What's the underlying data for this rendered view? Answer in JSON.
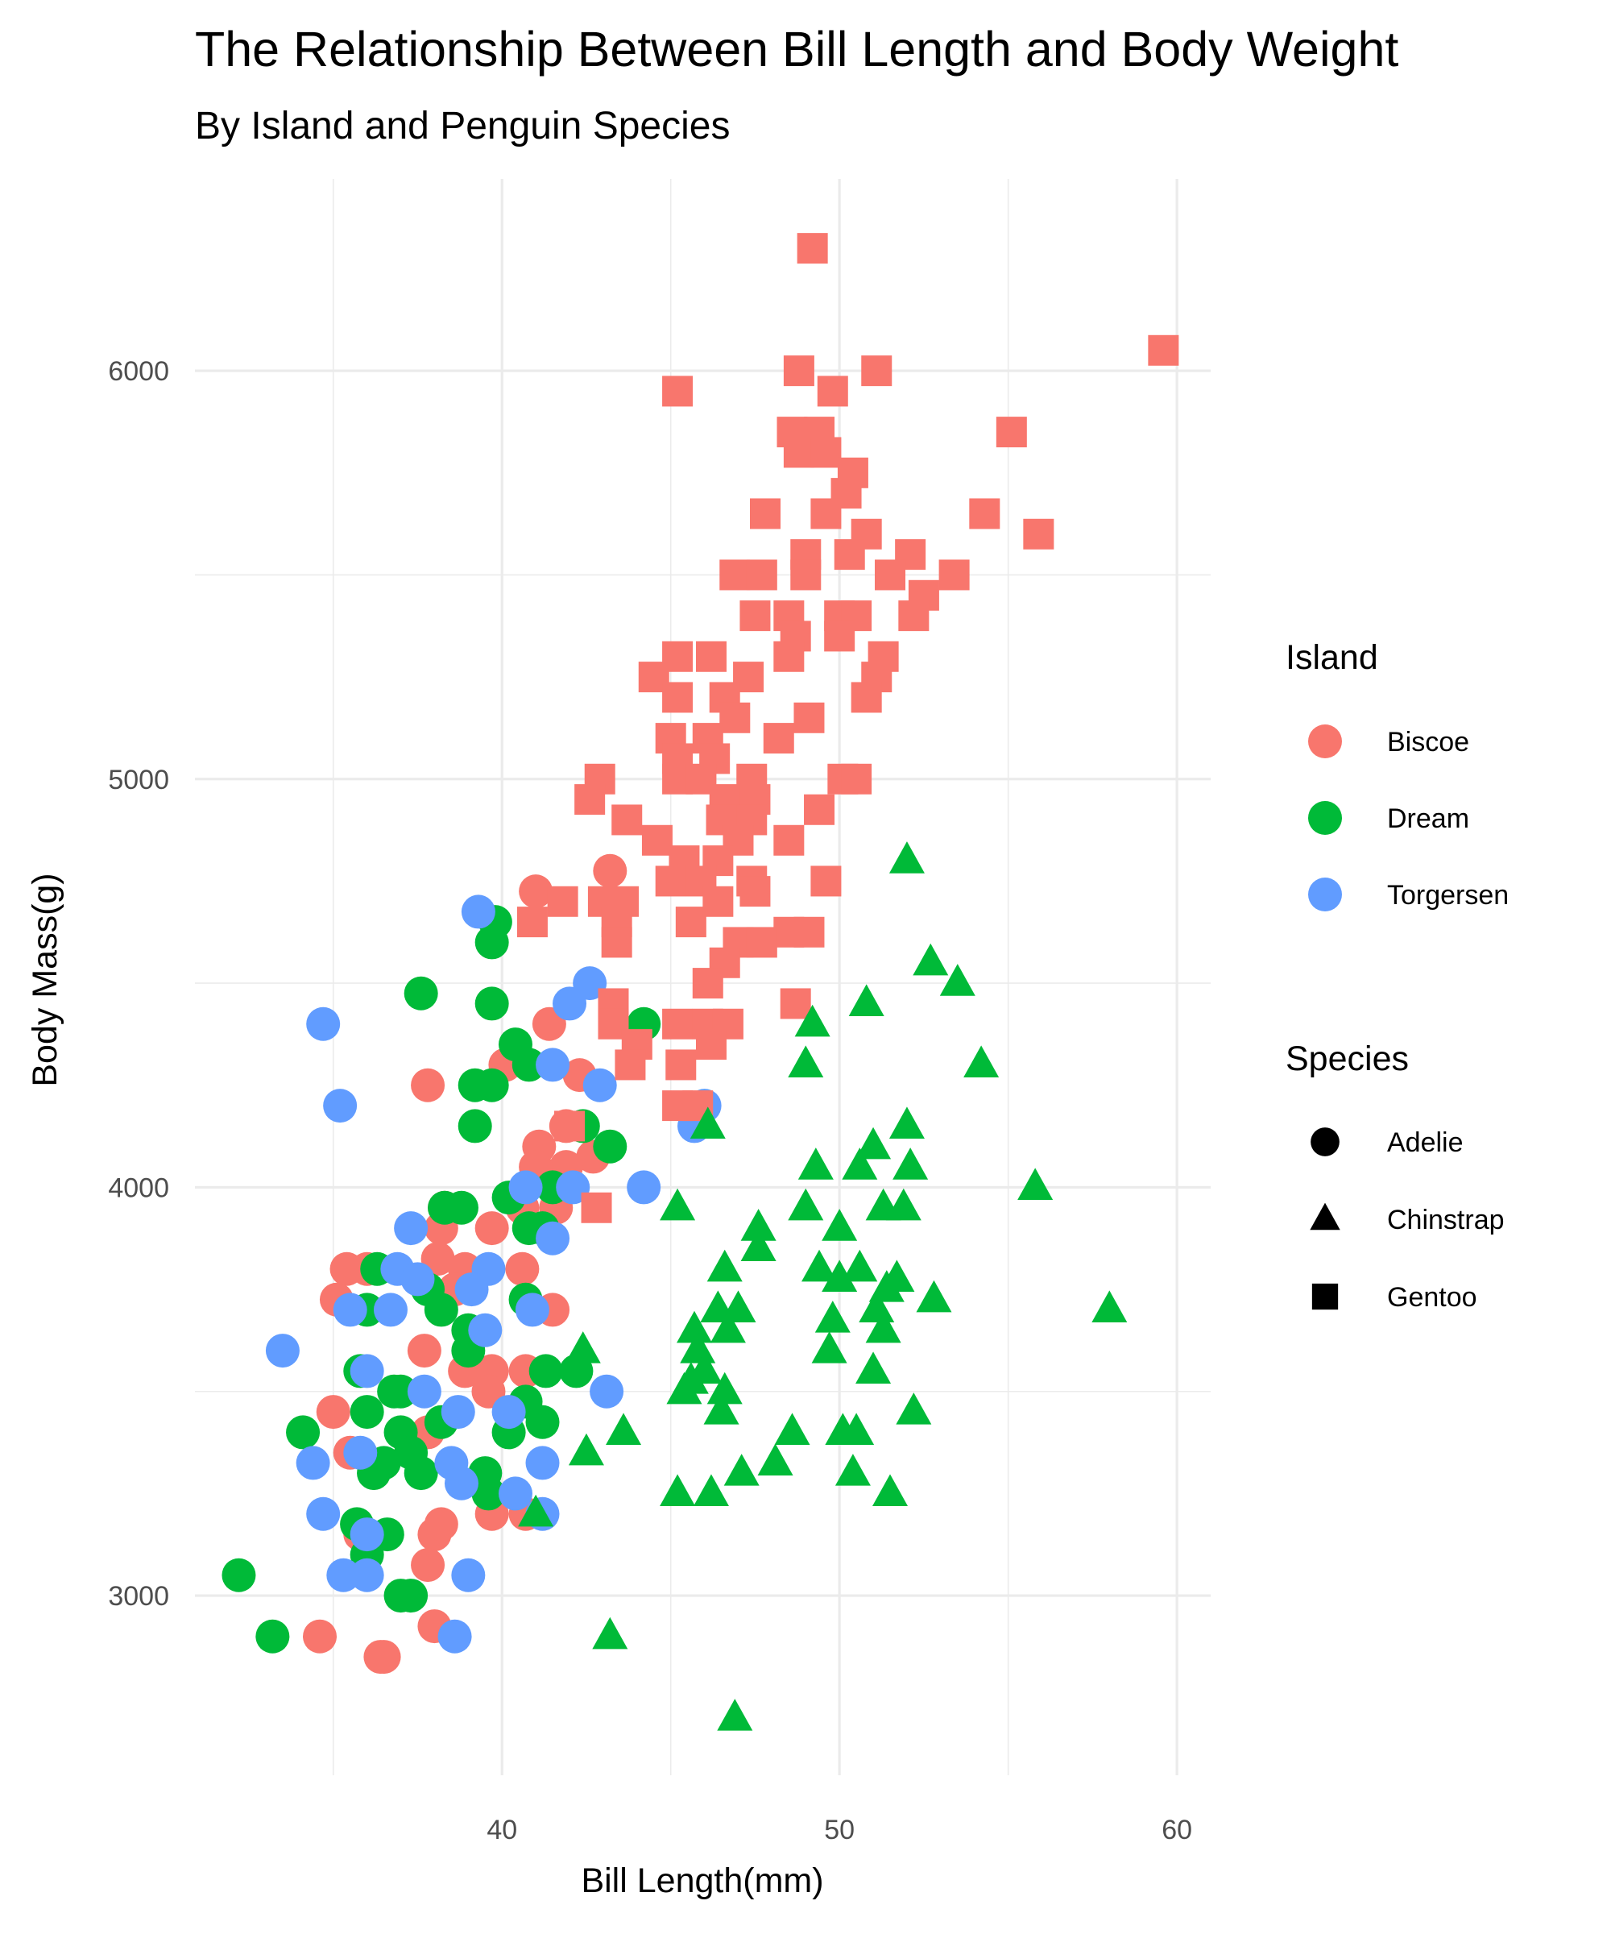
{
  "chart_data": {
    "type": "scatter",
    "title": "The Relationship Between Bill Length and Body Weight",
    "subtitle": "By Island and Penguin Species",
    "xlabel": "Bill Length(mm)",
    "ylabel": "Body Mass(g)",
    "xlim": [
      30.9,
      61
    ],
    "ylim": [
      2560,
      6470
    ],
    "x_ticks": [
      40,
      50,
      60
    ],
    "y_ticks": [
      3000,
      4000,
      5000,
      6000
    ],
    "x_tick_labels": [
      "40",
      "50",
      "60"
    ],
    "y_tick_labels": [
      "3000",
      "4000",
      "5000",
      "6000"
    ],
    "grid": true,
    "legend_placement": "right",
    "legend": {
      "color_title": "Island",
      "color_entries": [
        {
          "label": "Biscoe",
          "color": "#F8766D"
        },
        {
          "label": "Dream",
          "color": "#00BA38"
        },
        {
          "label": "Torgersen",
          "color": "#619CFF"
        }
      ],
      "shape_title": "Species",
      "shape_entries": [
        {
          "label": "Adelie",
          "shape": "circle"
        },
        {
          "label": "Chinstrap",
          "shape": "triangle"
        },
        {
          "label": "Gentoo",
          "shape": "square"
        }
      ]
    },
    "series": [
      {
        "island": "Biscoe",
        "species": "Adelie",
        "points": [
          [
            41,
            4725
          ],
          [
            43.2,
            4775
          ],
          [
            41.4,
            4400
          ],
          [
            40.1,
            4300
          ],
          [
            42.3,
            4275
          ],
          [
            37.8,
            4250
          ],
          [
            41.9,
            4150
          ],
          [
            41.1,
            4100
          ],
          [
            42.7,
            4075
          ],
          [
            41.9,
            4050
          ],
          [
            41,
            4050
          ],
          [
            41.6,
            3950
          ],
          [
            38.3,
            3950
          ],
          [
            40.6,
            3950
          ],
          [
            38.2,
            3900
          ],
          [
            39.7,
            3900
          ],
          [
            35.4,
            3800
          ],
          [
            36,
            3800
          ],
          [
            38.1,
            3825
          ],
          [
            38.9,
            3800
          ],
          [
            40.6,
            3800
          ],
          [
            35.1,
            3725
          ],
          [
            38.6,
            3750
          ],
          [
            41.5,
            3700
          ],
          [
            37.7,
            3600
          ],
          [
            38.9,
            3550
          ],
          [
            39.7,
            3550
          ],
          [
            40.7,
            3550
          ],
          [
            39.6,
            3500
          ],
          [
            35,
            3450
          ],
          [
            37.8,
            3400
          ],
          [
            35.5,
            3350
          ],
          [
            39.7,
            3200
          ],
          [
            40.7,
            3200
          ],
          [
            35.8,
            3150
          ],
          [
            38,
            3150
          ],
          [
            38.2,
            3175
          ],
          [
            37.8,
            3075
          ],
          [
            34.6,
            2900
          ],
          [
            38,
            2925
          ],
          [
            36.5,
            2850
          ],
          [
            36.4,
            2850
          ]
        ]
      },
      {
        "island": "Dream",
        "species": "Adelie",
        "points": [
          [
            39.8,
            4650
          ],
          [
            39.7,
            4600
          ],
          [
            37.6,
            4475
          ],
          [
            39.7,
            4450
          ],
          [
            40.4,
            4350
          ],
          [
            44.2,
            4400
          ],
          [
            39.2,
            4250
          ],
          [
            39.7,
            4250
          ],
          [
            40.8,
            4300
          ],
          [
            39.2,
            4150
          ],
          [
            42.4,
            4150
          ],
          [
            43.2,
            4100
          ],
          [
            40.2,
            3975
          ],
          [
            41.5,
            4000
          ],
          [
            40.8,
            3900
          ],
          [
            41.2,
            3900
          ],
          [
            38.3,
            3950
          ],
          [
            38.8,
            3950
          ],
          [
            36.3,
            3800
          ],
          [
            37.8,
            3750
          ],
          [
            38.2,
            3700
          ],
          [
            40.7,
            3725
          ],
          [
            36,
            3700
          ],
          [
            39,
            3650
          ],
          [
            39,
            3600
          ],
          [
            35.8,
            3550
          ],
          [
            41.3,
            3550
          ],
          [
            42.2,
            3550
          ],
          [
            36,
            3450
          ],
          [
            36.8,
            3500
          ],
          [
            37,
            3500
          ],
          [
            40.7,
            3475
          ],
          [
            34.1,
            3400
          ],
          [
            37,
            3400
          ],
          [
            38.2,
            3425
          ],
          [
            40.2,
            3400
          ],
          [
            41.2,
            3425
          ],
          [
            37.3,
            3350
          ],
          [
            36.5,
            3325
          ],
          [
            37.6,
            3300
          ],
          [
            36.2,
            3300
          ],
          [
            39.5,
            3300
          ],
          [
            39.6,
            3250
          ],
          [
            35.7,
            3175
          ],
          [
            36.6,
            3150
          ],
          [
            36,
            3100
          ],
          [
            37,
            3000
          ],
          [
            37.3,
            3000
          ],
          [
            32.2,
            3050
          ],
          [
            33.2,
            2900
          ]
        ]
      },
      {
        "island": "Torgersen",
        "species": "Adelie",
        "points": [
          [
            39.3,
            4675
          ],
          [
            34.7,
            4400
          ],
          [
            35.2,
            4200
          ],
          [
            42.6,
            4500
          ],
          [
            42,
            4450
          ],
          [
            41.5,
            4300
          ],
          [
            42.9,
            4250
          ],
          [
            46,
            4200
          ],
          [
            45.7,
            4150
          ],
          [
            44.2,
            4000
          ],
          [
            42.1,
            4000
          ],
          [
            40.7,
            4000
          ],
          [
            41.5,
            3875
          ],
          [
            37.3,
            3900
          ],
          [
            36.9,
            3800
          ],
          [
            39.6,
            3800
          ],
          [
            37.5,
            3775
          ],
          [
            39.1,
            3750
          ],
          [
            35.5,
            3700
          ],
          [
            36.7,
            3700
          ],
          [
            40.9,
            3700
          ],
          [
            39.5,
            3650
          ],
          [
            33.5,
            3600
          ],
          [
            36,
            3550
          ],
          [
            37.7,
            3500
          ],
          [
            43.1,
            3500
          ],
          [
            38.7,
            3450
          ],
          [
            40.2,
            3450
          ],
          [
            34.4,
            3325
          ],
          [
            38.5,
            3325
          ],
          [
            38.8,
            3275
          ],
          [
            41.2,
            3325
          ],
          [
            35.8,
            3350
          ],
          [
            40.4,
            3250
          ],
          [
            34.7,
            3200
          ],
          [
            41.2,
            3200
          ],
          [
            36,
            3150
          ],
          [
            35.3,
            3050
          ],
          [
            36,
            3050
          ],
          [
            39,
            3050
          ],
          [
            38.6,
            2900
          ]
        ]
      },
      {
        "island": "Biscoe",
        "species": "Gentoo",
        "points": [
          [
            49.2,
            6300
          ],
          [
            59.6,
            6050
          ],
          [
            48.8,
            6000
          ],
          [
            51.1,
            6000
          ],
          [
            45.2,
            5950
          ],
          [
            49.8,
            5950
          ],
          [
            48.6,
            5850
          ],
          [
            49.4,
            5850
          ],
          [
            55.1,
            5850
          ],
          [
            48.8,
            5800
          ],
          [
            49.6,
            5800
          ],
          [
            50.4,
            5750
          ],
          [
            50.2,
            5700
          ],
          [
            49.6,
            5650
          ],
          [
            47.8,
            5650
          ],
          [
            54.3,
            5650
          ],
          [
            55.9,
            5600
          ],
          [
            50.8,
            5600
          ],
          [
            49,
            5550
          ],
          [
            50.3,
            5550
          ],
          [
            52.1,
            5550
          ],
          [
            46.9,
            5500
          ],
          [
            47.7,
            5500
          ],
          [
            49,
            5500
          ],
          [
            51.5,
            5500
          ],
          [
            53.4,
            5500
          ],
          [
            52.5,
            5450
          ],
          [
            47.5,
            5400
          ],
          [
            48.5,
            5400
          ],
          [
            50,
            5400
          ],
          [
            50.5,
            5400
          ],
          [
            52.2,
            5400
          ],
          [
            48.7,
            5350
          ],
          [
            50,
            5350
          ],
          [
            45.2,
            5300
          ],
          [
            46.2,
            5300
          ],
          [
            48.5,
            5300
          ],
          [
            51.3,
            5300
          ],
          [
            44.5,
            5250
          ],
          [
            47.3,
            5250
          ],
          [
            51.1,
            5250
          ],
          [
            45.2,
            5200
          ],
          [
            46.6,
            5200
          ],
          [
            50.8,
            5200
          ],
          [
            46.9,
            5150
          ],
          [
            49.1,
            5150
          ],
          [
            45,
            5100
          ],
          [
            46.1,
            5100
          ],
          [
            48.2,
            5100
          ],
          [
            45.2,
            5050
          ],
          [
            46.3,
            5050
          ],
          [
            42.9,
            5000
          ],
          [
            45.2,
            5000
          ],
          [
            45.9,
            5000
          ],
          [
            47.4,
            5000
          ],
          [
            50.1,
            5000
          ],
          [
            50.5,
            5000
          ],
          [
            42.6,
            4950
          ],
          [
            46.6,
            4950
          ],
          [
            47.5,
            4950
          ],
          [
            43.7,
            4900
          ],
          [
            46.5,
            4900
          ],
          [
            47.4,
            4900
          ],
          [
            49.4,
            4925
          ],
          [
            44.6,
            4850
          ],
          [
            47,
            4850
          ],
          [
            48.5,
            4850
          ],
          [
            45.4,
            4800
          ],
          [
            46.4,
            4800
          ],
          [
            45,
            4750
          ],
          [
            45.9,
            4750
          ],
          [
            47.4,
            4750
          ],
          [
            49.6,
            4750
          ],
          [
            43,
            4700
          ],
          [
            43.6,
            4700
          ],
          [
            41.8,
            4700
          ],
          [
            40.9,
            4650
          ],
          [
            46.4,
            4700
          ],
          [
            47.5,
            4725
          ],
          [
            43.4,
            4650
          ],
          [
            45.6,
            4650
          ],
          [
            48.5,
            4625
          ],
          [
            49.1,
            4625
          ],
          [
            43.4,
            4600
          ],
          [
            47,
            4600
          ],
          [
            47.7,
            4600
          ],
          [
            46.6,
            4550
          ],
          [
            46.1,
            4500
          ],
          [
            43.3,
            4450
          ],
          [
            48.7,
            4450
          ],
          [
            43.3,
            4400
          ],
          [
            45.2,
            4400
          ],
          [
            46.1,
            4400
          ],
          [
            46.7,
            4400
          ],
          [
            44,
            4350
          ],
          [
            46.2,
            4350
          ],
          [
            43.8,
            4300
          ],
          [
            45.3,
            4300
          ],
          [
            42,
            4150
          ],
          [
            45.2,
            4200
          ],
          [
            45.8,
            4200
          ],
          [
            42.8,
            3950
          ]
        ]
      },
      {
        "island": "Dream",
        "species": "Chinstrap",
        "points": [
          [
            52,
            4800
          ],
          [
            52.7,
            4550
          ],
          [
            53.5,
            4500
          ],
          [
            50.8,
            4450
          ],
          [
            49.2,
            4400
          ],
          [
            49,
            4300
          ],
          [
            54.2,
            4300
          ],
          [
            46.1,
            4150
          ],
          [
            52,
            4150
          ],
          [
            51,
            4100
          ],
          [
            50.6,
            4050
          ],
          [
            49.3,
            4050
          ],
          [
            52.1,
            4050
          ],
          [
            55.8,
            4000
          ],
          [
            45.2,
            3950
          ],
          [
            49,
            3950
          ],
          [
            51.3,
            3950
          ],
          [
            51.9,
            3950
          ],
          [
            47.6,
            3900
          ],
          [
            50,
            3900
          ],
          [
            47.6,
            3850
          ],
          [
            46.6,
            3800
          ],
          [
            49.4,
            3800
          ],
          [
            50.6,
            3800
          ],
          [
            51.7,
            3775
          ],
          [
            50,
            3775
          ],
          [
            51.4,
            3750
          ],
          [
            52.8,
            3725
          ],
          [
            58,
            3700
          ],
          [
            47,
            3700
          ],
          [
            46.4,
            3700
          ],
          [
            51.1,
            3700
          ],
          [
            45.7,
            3650
          ],
          [
            46.7,
            3650
          ],
          [
            49.8,
            3675
          ],
          [
            51.3,
            3650
          ],
          [
            42.4,
            3600
          ],
          [
            45.8,
            3600
          ],
          [
            49.7,
            3600
          ],
          [
            46,
            3550
          ],
          [
            51,
            3550
          ],
          [
            45.4,
            3500
          ],
          [
            46.6,
            3500
          ],
          [
            45.6,
            3525
          ],
          [
            46.5,
            3450
          ],
          [
            52.2,
            3450
          ],
          [
            43.6,
            3400
          ],
          [
            48.6,
            3400
          ],
          [
            50.1,
            3400
          ],
          [
            50.5,
            3400
          ],
          [
            42.5,
            3350
          ],
          [
            48.1,
            3325
          ],
          [
            50.4,
            3300
          ],
          [
            47.1,
            3300
          ],
          [
            45.2,
            3250
          ],
          [
            46.2,
            3250
          ],
          [
            51.5,
            3250
          ],
          [
            41,
            3200
          ],
          [
            43.2,
            2900
          ],
          [
            46.9,
            2700
          ]
        ]
      }
    ]
  }
}
